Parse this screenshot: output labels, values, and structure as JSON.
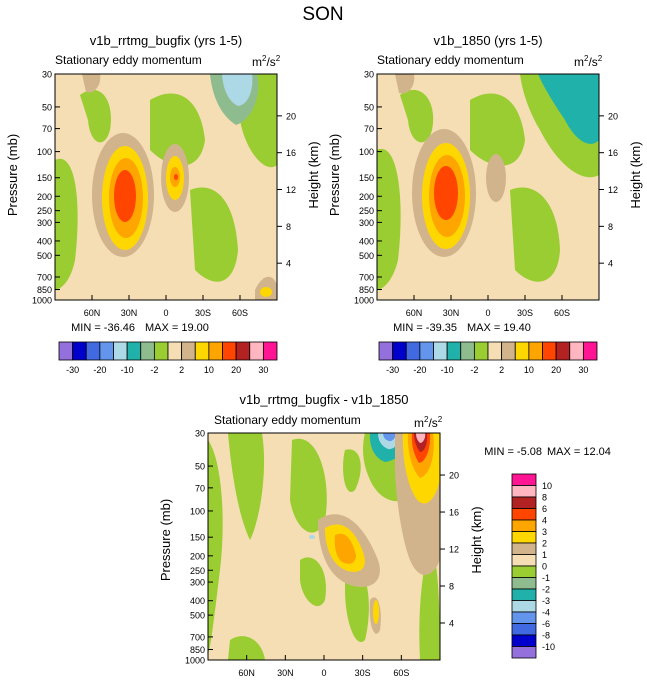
{
  "figure": {
    "title": "SON"
  },
  "colormap": [
    "#9370DB",
    "#0000CD",
    "#4169E1",
    "#6495ED",
    "#ADD8E6",
    "#20B2AA",
    "#8FBC8F",
    "#9ACD32",
    "#F5DEB3",
    "#D2B48C",
    "#FFD700",
    "#FFA500",
    "#FF4500",
    "#B22222",
    "#FFB6C1",
    "#FF1493"
  ],
  "chart_data": [
    {
      "type": "heatmap",
      "title": "v1b_rrtmg_bugfix (yrs 1-5)",
      "subtitle": "Stationary eddy momentum",
      "units_base": "m",
      "units_sup1": "2",
      "units_mid": "/s",
      "units_sup2": "2",
      "ylabel": "Pressure (mb)",
      "ylabel_right": "Height (km)",
      "y_ticks": [
        "30",
        "50",
        "70",
        "100",
        "150",
        "200",
        "250",
        "300",
        "400",
        "500",
        "700",
        "850",
        "1000"
      ],
      "y_tick_values": [
        30,
        50,
        70,
        100,
        150,
        200,
        250,
        300,
        400,
        500,
        700,
        850,
        1000
      ],
      "x_ticks": [
        "60N",
        "30N",
        "0",
        "30S",
        "60S"
      ],
      "x_tick_values": [
        60,
        30,
        0,
        -30,
        -60
      ],
      "x_range": [
        90,
        -90
      ],
      "height_ticks": [
        "4",
        "8",
        "12",
        "16",
        "20"
      ],
      "height_values": [
        4,
        8,
        12,
        16,
        20
      ],
      "min_label": "MIN = -36.46",
      "max_label": "MAX = 19.00",
      "min": -36.46,
      "max": 19.0
    },
    {
      "type": "heatmap",
      "title": "v1b_1850 (yrs 1-5)",
      "subtitle": "Stationary eddy momentum",
      "units_base": "m",
      "units_sup1": "2",
      "units_mid": "/s",
      "units_sup2": "2",
      "ylabel": "Pressure (mb)",
      "ylabel_right": "Height (km)",
      "y_ticks": [
        "30",
        "50",
        "70",
        "100",
        "150",
        "200",
        "250",
        "300",
        "400",
        "500",
        "700",
        "850",
        "1000"
      ],
      "y_tick_values": [
        30,
        50,
        70,
        100,
        150,
        200,
        250,
        300,
        400,
        500,
        700,
        850,
        1000
      ],
      "x_ticks": [
        "60N",
        "30N",
        "0",
        "30S",
        "60S"
      ],
      "x_tick_values": [
        60,
        30,
        0,
        -30,
        -60
      ],
      "x_range": [
        90,
        -90
      ],
      "height_ticks": [
        "4",
        "8",
        "12",
        "16",
        "20"
      ],
      "height_values": [
        4,
        8,
        12,
        16,
        20
      ],
      "min_label": "MIN = -39.35",
      "max_label": "MAX = 19.40",
      "min": -39.35,
      "max": 19.4
    },
    {
      "type": "heatmap",
      "title": "v1b_rrtmg_bugfix - v1b_1850",
      "subtitle": "Stationary eddy momentum",
      "units_base": "m",
      "units_sup1": "2",
      "units_mid": "/s",
      "units_sup2": "2",
      "ylabel": "Pressure (mb)",
      "ylabel_right": "Height (km)",
      "y_ticks": [
        "30",
        "50",
        "70",
        "100",
        "150",
        "200",
        "250",
        "300",
        "400",
        "500",
        "700",
        "850",
        "1000"
      ],
      "y_tick_values": [
        30,
        50,
        70,
        100,
        150,
        200,
        250,
        300,
        400,
        500,
        700,
        850,
        1000
      ],
      "x_ticks": [
        "60N",
        "30N",
        "0",
        "30S",
        "60S"
      ],
      "x_tick_values": [
        60,
        30,
        0,
        -30,
        -60
      ],
      "x_range": [
        90,
        -90
      ],
      "height_ticks": [
        "4",
        "8",
        "12",
        "16",
        "20"
      ],
      "height_values": [
        4,
        8,
        12,
        16,
        20
      ],
      "min_label": "MIN =  -5.08",
      "max_label": "MAX =  12.04",
      "min": -5.08,
      "max": 12.04
    }
  ],
  "colorbar_top": {
    "labels": [
      "-30",
      "-20",
      "-10",
      "-2",
      "2",
      "10",
      "20",
      "30"
    ],
    "label_boundaries": [
      1,
      3,
      5,
      7,
      9,
      11,
      13,
      15
    ]
  },
  "colorbar_diff": {
    "labels": [
      "10",
      "8",
      "6",
      "4",
      "3",
      "2",
      "1",
      "0",
      "-1",
      "-2",
      "-3",
      "-4",
      "-6",
      "-8",
      "-10"
    ]
  }
}
